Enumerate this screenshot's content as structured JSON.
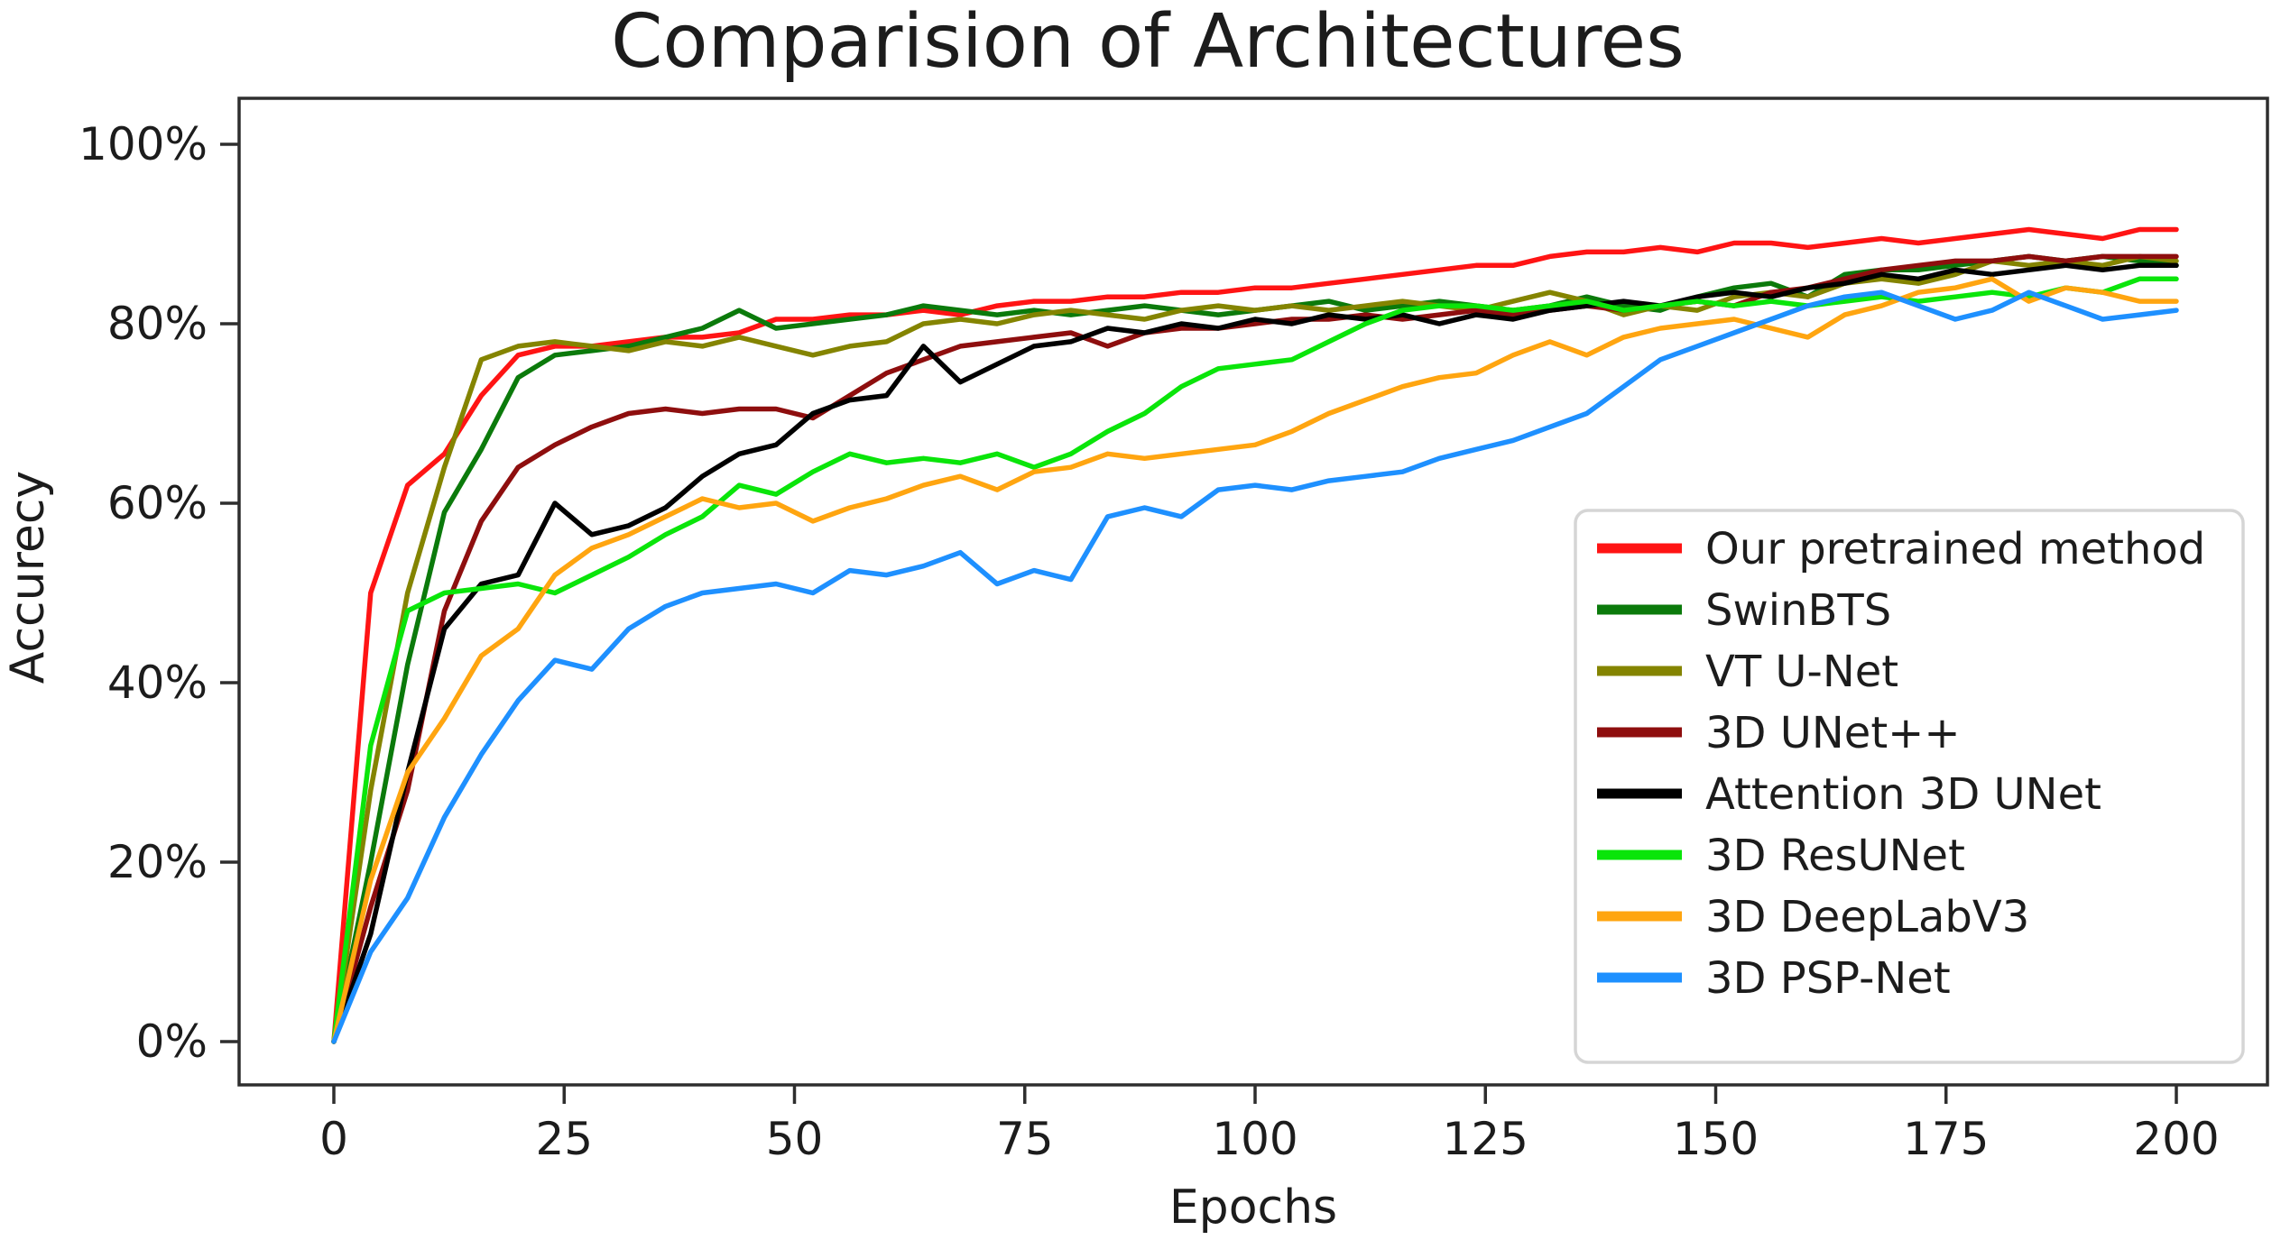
{
  "title": "Comparision of Architectures",
  "chart_data": {
    "type": "line",
    "title": "Comparision of Architectures",
    "xlabel": "Epochs",
    "ylabel": "Accurecy",
    "xlim": [
      0,
      200
    ],
    "ylim": [
      0,
      100
    ],
    "grid": false,
    "legend_position": "lower right",
    "x_ticks": [
      0,
      25,
      50,
      75,
      100,
      125,
      150,
      175,
      200
    ],
    "y_ticks": [
      0,
      20,
      40,
      60,
      80,
      100
    ],
    "y_tick_labels": [
      "0%",
      "20%",
      "40%",
      "60%",
      "80%",
      "100%"
    ],
    "x": [
      0,
      4,
      8,
      12,
      16,
      20,
      24,
      28,
      32,
      36,
      40,
      44,
      48,
      52,
      56,
      60,
      64,
      68,
      72,
      76,
      80,
      84,
      88,
      92,
      96,
      100,
      104,
      108,
      112,
      116,
      120,
      124,
      128,
      132,
      136,
      140,
      144,
      148,
      152,
      156,
      160,
      164,
      168,
      172,
      176,
      180,
      184,
      188,
      192,
      196,
      200
    ],
    "series": [
      {
        "name": "Our pretrained method",
        "color": "#ff1414",
        "values": [
          0,
          50,
          62,
          65.5,
          72,
          76.5,
          77.5,
          77.5,
          78,
          78.5,
          78.5,
          79,
          80.5,
          80.5,
          81,
          81,
          81.5,
          81,
          82,
          82.5,
          82.5,
          83,
          83,
          83.5,
          83.5,
          84,
          84,
          84.5,
          85,
          85.5,
          86,
          86.5,
          86.5,
          87.5,
          88,
          88,
          88.5,
          88,
          89,
          89,
          88.5,
          89,
          89.5,
          89,
          89.5,
          90,
          90.5,
          90,
          89.5,
          90.5,
          90.5
        ]
      },
      {
        "name": "SwinBTS",
        "color": "#0b7a0b",
        "values": [
          0,
          20,
          42,
          59,
          66,
          74,
          76.5,
          77,
          77.5,
          78.5,
          79.5,
          81.5,
          79.5,
          80,
          80.5,
          81,
          82,
          81.5,
          81,
          81.5,
          81,
          81.5,
          82,
          81.5,
          81,
          81.5,
          82,
          82.5,
          81.5,
          82,
          82.5,
          82,
          81.5,
          82,
          83,
          82,
          81.5,
          83,
          84,
          84.5,
          83,
          85.5,
          86,
          86,
          86.5,
          87,
          87.5,
          87,
          87.5,
          87,
          86.5
        ]
      },
      {
        "name": "VT U-Net",
        "color": "#848400",
        "values": [
          0,
          28,
          50,
          64,
          76,
          77.5,
          78,
          77.5,
          77,
          78,
          77.5,
          78.5,
          77.5,
          76.5,
          77.5,
          78,
          80,
          80.5,
          80,
          81,
          81.5,
          81,
          80.5,
          81.5,
          82,
          81.5,
          82,
          81.5,
          82,
          82.5,
          82,
          81.5,
          82.5,
          83.5,
          82.5,
          81,
          82,
          81.5,
          83,
          83.5,
          83,
          84.5,
          85,
          84.5,
          85.5,
          87,
          86.5,
          87,
          86.5,
          87.5,
          87
        ]
      },
      {
        "name": "3D UNet++",
        "color": "#8e0e0e",
        "values": [
          0,
          15,
          28,
          48,
          58,
          64,
          66.5,
          68.5,
          70,
          70.5,
          70,
          70.5,
          70.5,
          69.5,
          72,
          74.5,
          76,
          77.5,
          78,
          78.5,
          79,
          77.5,
          79,
          79.5,
          79.5,
          80,
          80.5,
          80.5,
          81,
          80.5,
          81,
          81.5,
          81,
          81.5,
          82,
          81.5,
          82,
          82.5,
          82,
          83.5,
          84,
          85,
          86,
          86.5,
          87,
          87,
          87.5,
          87,
          87.5,
          87.5,
          87.5
        ]
      },
      {
        "name": "Attention 3D UNet",
        "color": "#000000",
        "values": [
          0,
          12,
          30,
          46,
          51,
          52,
          60,
          56.5,
          57.5,
          59.5,
          63,
          65.5,
          66.5,
          70,
          71.5,
          72,
          77.5,
          73.5,
          75.5,
          77.5,
          78,
          79.5,
          79,
          80,
          79.5,
          80.5,
          80,
          81,
          80.5,
          81,
          80,
          81,
          80.5,
          81.5,
          82,
          82.5,
          82,
          83,
          83.5,
          83,
          84,
          84.5,
          85.5,
          85,
          86,
          85.5,
          86,
          86.5,
          86,
          86.5,
          86.5
        ]
      },
      {
        "name": "3D ResUNet",
        "color": "#0ae50a",
        "values": [
          0,
          33,
          48,
          50,
          50.5,
          51,
          50,
          52,
          54,
          56.5,
          58.5,
          62,
          61,
          63.5,
          65.5,
          64.5,
          65,
          64.5,
          65.5,
          64,
          65.5,
          68,
          70,
          73,
          75,
          75.5,
          76,
          78,
          80,
          81.5,
          82,
          82,
          81.5,
          82,
          82.5,
          81.5,
          82,
          82.5,
          82,
          82.5,
          82,
          82.5,
          83,
          82.5,
          83,
          83.5,
          83,
          84,
          83.5,
          85,
          85
        ]
      },
      {
        "name": "3D DeepLabV3",
        "color": "#ffa510",
        "values": [
          0,
          18,
          30,
          36,
          43,
          46,
          52,
          55,
          56.5,
          58.5,
          60.5,
          59.5,
          60,
          58,
          59.5,
          60.5,
          62,
          63,
          61.5,
          63.5,
          64,
          65.5,
          65,
          65.5,
          66,
          66.5,
          68,
          70,
          71.5,
          73,
          74,
          74.5,
          76.5,
          78,
          76.5,
          78.5,
          79.5,
          80,
          80.5,
          79.5,
          78.5,
          81,
          82,
          83.5,
          84,
          85,
          82.5,
          84,
          83.5,
          82.5,
          82.5
        ]
      },
      {
        "name": "3D PSP-Net",
        "color": "#1e90ff",
        "values": [
          0,
          10,
          16,
          25,
          32,
          38,
          42.5,
          41.5,
          46,
          48.5,
          50,
          50.5,
          51,
          50,
          52.5,
          52,
          53,
          54.5,
          51,
          52.5,
          51.5,
          58.5,
          59.5,
          58.5,
          61.5,
          62,
          61.5,
          62.5,
          63,
          63.5,
          65,
          66,
          67,
          68.5,
          70,
          73,
          76,
          77.5,
          79,
          80.5,
          82,
          83,
          83.5,
          82,
          80.5,
          81.5,
          83.5,
          82,
          80.5,
          81,
          81.5
        ]
      }
    ]
  }
}
